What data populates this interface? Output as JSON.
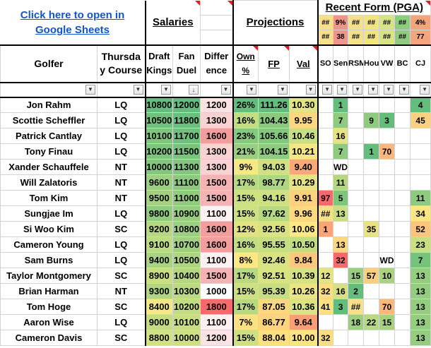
{
  "header": {
    "link_text": "Click here to open in Google Sheets",
    "link_line1": "Click here to open in",
    "link_line2": "Google Sheets",
    "salaries": "Salaries",
    "projections": "Projections",
    "recent_form": "Recent Form (PGA)"
  },
  "form_top": [
    [
      {
        "t": "##",
        "c": "#f8e08a"
      },
      {
        "t": "9%",
        "c": "#f0948c"
      },
      {
        "t": "##",
        "c": "#f8e08a"
      },
      {
        "t": "##",
        "c": "#f3e57e"
      },
      {
        "t": "##",
        "c": "#d8e382"
      },
      {
        "t": "##",
        "c": "#8fcd7e"
      },
      {
        "t": "4%",
        "c": "#f4a57c"
      }
    ],
    [
      {
        "t": "##",
        "c": "#f8e08a"
      },
      {
        "t": "38",
        "c": "#f0948c"
      },
      {
        "t": "##",
        "c": "#f8e08a"
      },
      {
        "t": "##",
        "c": "#f3e57e"
      },
      {
        "t": "##",
        "c": "#d8e382"
      },
      {
        "t": "##",
        "c": "#8fcd7e"
      },
      {
        "t": "77",
        "c": "#f4a57c"
      }
    ]
  ],
  "columns": {
    "golfer": "Golfer",
    "thursday_line1": "Thursda",
    "thursday_line2": "y Course",
    "dk_line1": "Draft",
    "dk_line2": "Kings",
    "fd_line1": "Fan",
    "fd_line2": "Duel",
    "diff_line1": "Differ",
    "diff_line2": "ence",
    "own_line1": "Own",
    "own_line2": "%",
    "fp": "FP",
    "val": "Val",
    "form": [
      "SO",
      "Sen",
      "RSM",
      "Hou",
      "VW",
      "BC",
      "CJ"
    ]
  },
  "colors": {
    "link": "#1155cc",
    "corner_marker": "#e02020",
    "green_strong": "#63be7b",
    "red_strong": "#f8696b",
    "yellow": "#ffeb84"
  },
  "rows": [
    {
      "golfer": "Jon Rahm",
      "course": "LQ",
      "dk": "10800",
      "fd": "12000",
      "diff": "1200",
      "own": "26%",
      "fp": "111.26",
      "val": "10.30",
      "dkc": "#63be7b",
      "fdc": "#63be7b",
      "diffc": "#fbe3e4",
      "ownc": "#63be7b",
      "fpc": "#63be7b",
      "valc": "#e4e483",
      "form": [
        {
          "t": "",
          "c": ""
        },
        {
          "t": "1",
          "c": "#63be7b"
        },
        {
          "t": "",
          "c": ""
        },
        {
          "t": "",
          "c": ""
        },
        {
          "t": "",
          "c": ""
        },
        {
          "t": "",
          "c": ""
        },
        {
          "t": "4",
          "c": "#63be7b"
        }
      ]
    },
    {
      "golfer": "Scottie Scheffler",
      "course": "LQ",
      "dk": "10500",
      "fd": "11800",
      "diff": "1300",
      "own": "16%",
      "fp": "104.43",
      "val": "9.95",
      "dkc": "#6fc27c",
      "fdc": "#68c07c",
      "diffc": "#f9d2d3",
      "ownc": "#c3dd81",
      "fpc": "#8bca7e",
      "valc": "#fed880",
      "form": [
        {
          "t": "",
          "c": ""
        },
        {
          "t": "7",
          "c": "#8ecb7e"
        },
        {
          "t": "",
          "c": ""
        },
        {
          "t": "9",
          "c": "#8ecb7e"
        },
        {
          "t": "3",
          "c": "#63be7b"
        },
        {
          "t": "",
          "c": ""
        },
        {
          "t": "45",
          "c": "#fdd17f"
        }
      ]
    },
    {
      "golfer": "Patrick Cantlay",
      "course": "LQ",
      "dk": "10100",
      "fd": "11700",
      "diff": "1600",
      "own": "23%",
      "fp": "105.66",
      "val": "10.46",
      "dkc": "#7fc67d",
      "fdc": "#6dc17c",
      "diffc": "#f29e9f",
      "ownc": "#86c97e",
      "fpc": "#84c87d",
      "valc": "#c9df82",
      "form": [
        {
          "t": "",
          "c": ""
        },
        {
          "t": "16",
          "c": "#e7e383"
        },
        {
          "t": "",
          "c": ""
        },
        {
          "t": "",
          "c": ""
        },
        {
          "t": "",
          "c": ""
        },
        {
          "t": "",
          "c": ""
        },
        {
          "t": "",
          "c": ""
        }
      ]
    },
    {
      "golfer": "Tony Finau",
      "course": "LQ",
      "dk": "10200",
      "fd": "11500",
      "diff": "1300",
      "own": "21%",
      "fp": "104.15",
      "val": "10.21",
      "dkc": "#7bc57d",
      "fdc": "#78c47d",
      "diffc": "#f9d2d3",
      "ownc": "#98ce7f",
      "fpc": "#8dcb7e",
      "valc": "#f3e884",
      "form": [
        {
          "t": "",
          "c": ""
        },
        {
          "t": "7",
          "c": "#8ecb7e"
        },
        {
          "t": "",
          "c": ""
        },
        {
          "t": "1",
          "c": "#63be7b"
        },
        {
          "t": "70",
          "c": "#fbb77c"
        },
        {
          "t": "",
          "c": ""
        },
        {
          "t": "",
          "c": ""
        }
      ]
    },
    {
      "golfer": "Xander Schauffele",
      "course": "NT",
      "dk": "10000",
      "fd": "11300",
      "diff": "1300",
      "own": "9%",
      "fp": "94.03",
      "val": "9.40",
      "dkc": "#83c77d",
      "fdc": "#82c77d",
      "diffc": "#f9d2d3",
      "ownc": "#f6e883",
      "fpc": "#cfe182",
      "valc": "#fba877",
      "form": [
        {
          "t": "",
          "c": ""
        },
        {
          "t": "WD",
          "c": "#ffffff"
        },
        {
          "t": "",
          "c": ""
        },
        {
          "t": "",
          "c": ""
        },
        {
          "t": "",
          "c": ""
        },
        {
          "t": "",
          "c": ""
        },
        {
          "t": "",
          "c": ""
        }
      ]
    },
    {
      "golfer": "Will Zalatoris",
      "course": "NT",
      "dk": "9600",
      "fd": "11100",
      "diff": "1500",
      "own": "17%",
      "fp": "98.77",
      "val": "10.29",
      "dkc": "#9ccf7f",
      "fdc": "#8bca7e",
      "diffc": "#f5b3b4",
      "ownc": "#b8d980",
      "fpc": "#afd680",
      "valc": "#e7e483",
      "form": [
        {
          "t": "",
          "c": ""
        },
        {
          "t": "11",
          "c": "#b4d780"
        },
        {
          "t": "",
          "c": ""
        },
        {
          "t": "",
          "c": ""
        },
        {
          "t": "",
          "c": ""
        },
        {
          "t": "",
          "c": ""
        },
        {
          "t": "",
          "c": ""
        }
      ]
    },
    {
      "golfer": "Tom Kim",
      "course": "NT",
      "dk": "9500",
      "fd": "11000",
      "diff": "1500",
      "own": "15%",
      "fp": "94.16",
      "val": "9.91",
      "dkc": "#a3d180",
      "fdc": "#91cc7e",
      "diffc": "#f5b3b4",
      "ownc": "#cde082",
      "fpc": "#cee082",
      "valc": "#fed17f",
      "form": [
        {
          "t": "97",
          "c": "#f8696b"
        },
        {
          "t": "5",
          "c": "#7fc67d"
        },
        {
          "t": "",
          "c": ""
        },
        {
          "t": "",
          "c": ""
        },
        {
          "t": "",
          "c": ""
        },
        {
          "t": "",
          "c": ""
        },
        {
          "t": "11",
          "c": "#8ecb7e"
        }
      ]
    },
    {
      "golfer": "Sungjae Im",
      "course": "LQ",
      "dk": "9800",
      "fd": "10900",
      "diff": "1100",
      "own": "15%",
      "fp": "97.62",
      "val": "9.96",
      "dkc": "#90cb7e",
      "fdc": "#97cd7f",
      "diffc": "#fdf1f2",
      "ownc": "#cde082",
      "fpc": "#b7d980",
      "valc": "#fed980",
      "form": [
        {
          "t": "##",
          "c": "#f8e08a"
        },
        {
          "t": "13",
          "c": "#c9df82"
        },
        {
          "t": "",
          "c": ""
        },
        {
          "t": "",
          "c": ""
        },
        {
          "t": "",
          "c": ""
        },
        {
          "t": "",
          "c": ""
        },
        {
          "t": "34",
          "c": "#fee783"
        }
      ]
    },
    {
      "golfer": "Si Woo Kim",
      "course": "SC",
      "dk": "9200",
      "fd": "10800",
      "diff": "1600",
      "own": "12%",
      "fp": "92.56",
      "val": "10.06",
      "dkc": "#b6d880",
      "fdc": "#9ccf7f",
      "diffc": "#f29e9f",
      "ownc": "#e3e383",
      "fpc": "#d9e382",
      "valc": "#fee883",
      "form": [
        {
          "t": "1",
          "c": "#f8a579"
        },
        {
          "t": "",
          "c": ""
        },
        {
          "t": "",
          "c": ""
        },
        {
          "t": "35",
          "c": "#e9e483"
        },
        {
          "t": "",
          "c": ""
        },
        {
          "t": "",
          "c": ""
        },
        {
          "t": "52",
          "c": "#fdc47d"
        }
      ]
    },
    {
      "golfer": "Cameron Young",
      "course": "LQ",
      "dk": "9100",
      "fd": "10700",
      "diff": "1600",
      "own": "16%",
      "fp": "95.55",
      "val": "10.50",
      "dkc": "#bddb81",
      "fdc": "#a2d07f",
      "diffc": "#f29e9f",
      "ownc": "#c3dd81",
      "fpc": "#c5de81",
      "valc": "#c3dd81",
      "form": [
        {
          "t": "",
          "c": ""
        },
        {
          "t": "13",
          "c": "#fed880"
        },
        {
          "t": "",
          "c": ""
        },
        {
          "t": "",
          "c": ""
        },
        {
          "t": "",
          "c": ""
        },
        {
          "t": "",
          "c": ""
        },
        {
          "t": "23",
          "c": "#c9df82"
        }
      ]
    },
    {
      "golfer": "Sam Burns",
      "course": "LQ",
      "dk": "9400",
      "fd": "10500",
      "diff": "1100",
      "own": "8%",
      "fp": "92.46",
      "val": "9.84",
      "dkc": "#a9d380",
      "fdc": "#aed580",
      "diffc": "#fdf1f2",
      "ownc": "#fde883",
      "fpc": "#d9e382",
      "valc": "#fdc87e",
      "form": [
        {
          "t": "",
          "c": ""
        },
        {
          "t": "32",
          "c": "#f8696b"
        },
        {
          "t": "",
          "c": ""
        },
        {
          "t": "",
          "c": ""
        },
        {
          "t": "WD",
          "c": "#ffffff"
        },
        {
          "t": "",
          "c": ""
        },
        {
          "t": "7",
          "c": "#76c37c"
        }
      ]
    },
    {
      "golfer": "Taylor Montgomery",
      "course": "SC",
      "dk": "8900",
      "fd": "10400",
      "diff": "1500",
      "own": "17%",
      "fp": "92.51",
      "val": "10.39",
      "dkc": "#cbdf82",
      "fdc": "#b4d780",
      "diffc": "#f5b3b4",
      "ownc": "#b8d980",
      "fpc": "#d9e382",
      "valc": "#d6e282",
      "form": [
        {
          "t": "12",
          "c": "#e4e483"
        },
        {
          "t": "",
          "c": ""
        },
        {
          "t": "15",
          "c": "#98ce7f"
        },
        {
          "t": "57",
          "c": "#fdd07f"
        },
        {
          "t": "10",
          "c": "#a9d380"
        },
        {
          "t": "",
          "c": ""
        },
        {
          "t": "13",
          "c": "#94cd7f"
        }
      ]
    },
    {
      "golfer": "Brian Harman",
      "course": "NT",
      "dk": "9300",
      "fd": "10300",
      "diff": "1000",
      "own": "15%",
      "fp": "95.39",
      "val": "10.26",
      "dkc": "#b0d680",
      "fdc": "#bbda81",
      "diffc": "#fefefe",
      "ownc": "#cde082",
      "fpc": "#c6de81",
      "valc": "#ebe583",
      "form": [
        {
          "t": "32",
          "c": "#fcdd82"
        },
        {
          "t": "16",
          "c": "#d5e182"
        },
        {
          "t": "2",
          "c": "#63be7b"
        },
        {
          "t": "",
          "c": ""
        },
        {
          "t": "",
          "c": ""
        },
        {
          "t": "",
          "c": ""
        },
        {
          "t": "13",
          "c": "#94cd7f"
        }
      ]
    },
    {
      "golfer": "Tom Hoge",
      "course": "SC",
      "dk": "8400",
      "fd": "10200",
      "diff": "1800",
      "own": "17%",
      "fp": "87.05",
      "val": "10.36",
      "dkc": "#f3e884",
      "fdc": "#c1dc81",
      "diffc": "#f8696b",
      "ownc": "#b8d980",
      "fpc": "#fed880",
      "valc": "#dbe382",
      "form": [
        {
          "t": "41",
          "c": "#fee282"
        },
        {
          "t": "3",
          "c": "#63be7b"
        },
        {
          "t": "##",
          "c": "#f8e08a"
        },
        {
          "t": "",
          "c": ""
        },
        {
          "t": "70",
          "c": "#fbb77c"
        },
        {
          "t": "",
          "c": ""
        },
        {
          "t": "13",
          "c": "#94cd7f"
        }
      ]
    },
    {
      "golfer": "Aaron Wise",
      "course": "LQ",
      "dk": "9000",
      "fd": "10100",
      "diff": "1100",
      "own": "7%",
      "fp": "86.77",
      "val": "9.64",
      "dkc": "#c4dd81",
      "fdc": "#c7de81",
      "diffc": "#fdf1f2",
      "ownc": "#fee182",
      "fpc": "#fed47f",
      "valc": "#fa9f75",
      "form": [
        {
          "t": "",
          "c": ""
        },
        {
          "t": "",
          "c": ""
        },
        {
          "t": "18",
          "c": "#9ccf7f"
        },
        {
          "t": "22",
          "c": "#b7d980"
        },
        {
          "t": "15",
          "c": "#a6d27f"
        },
        {
          "t": "",
          "c": ""
        },
        {
          "t": "13",
          "c": "#94cd7f"
        }
      ]
    },
    {
      "golfer": "Cameron Davis",
      "course": "SC",
      "dk": "8800",
      "fd": "10000",
      "diff": "1200",
      "own": "15%",
      "fp": "88.04",
      "val": "10.00",
      "dkc": "#d2e182",
      "fdc": "#cee082",
      "diffc": "#fbe3e4",
      "ownc": "#cde082",
      "fpc": "#fee07f",
      "valc": "#fee582",
      "form": [
        {
          "t": "32",
          "c": "#fcdd82"
        },
        {
          "t": "",
          "c": ""
        },
        {
          "t": "",
          "c": ""
        },
        {
          "t": "",
          "c": ""
        },
        {
          "t": "",
          "c": ""
        },
        {
          "t": "",
          "c": ""
        },
        {
          "t": "13",
          "c": "#94cd7f"
        }
      ]
    }
  ]
}
